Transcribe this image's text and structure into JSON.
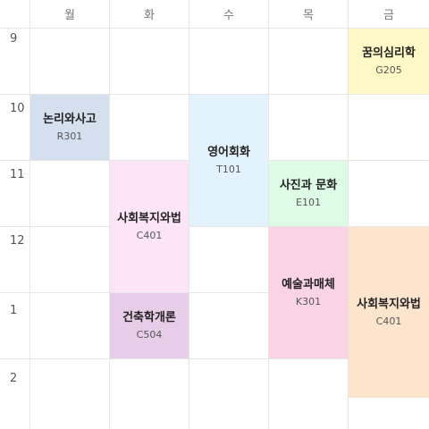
{
  "timetable": {
    "days": [
      "월",
      "화",
      "수",
      "목",
      "금"
    ],
    "hours": [
      "9",
      "10",
      "11",
      "12",
      "1",
      "2"
    ],
    "courses": [
      {
        "name": "꿈의심리학",
        "room": "G205",
        "day": 4,
        "start_hour": 9,
        "end_hour": 10,
        "color": "#fff9c7"
      },
      {
        "name": "논리와사고",
        "room": "R301",
        "day": 0,
        "start_hour": 10,
        "end_hour": 11,
        "color": "#d5e0ee"
      },
      {
        "name": "영어회화",
        "room": "T101",
        "day": 2,
        "start_hour": 10,
        "end_hour": 12,
        "color": "#e3f3fd"
      },
      {
        "name": "사진과 문화",
        "room": "E101",
        "day": 3,
        "start_hour": 11,
        "end_hour": 12,
        "color": "#defbe5"
      },
      {
        "name": "사회복지와법",
        "room": "C401",
        "day": 1,
        "start_hour": 11,
        "end_hour": 13,
        "color": "#fde5f8"
      },
      {
        "name": "예술과매체",
        "room": "K301",
        "day": 3,
        "start_hour": 12,
        "end_hour": 14,
        "color": "#fad3e6"
      },
      {
        "name": "사회복지와법",
        "room": "C401",
        "day": 4,
        "start_hour": 12,
        "end_hour": 14.5,
        "color": "#fde4cd"
      },
      {
        "name": "건축학개론",
        "room": "C504",
        "day": 1,
        "start_hour": 13,
        "end_hour": 14,
        "color": "#e8cde8"
      }
    ]
  }
}
